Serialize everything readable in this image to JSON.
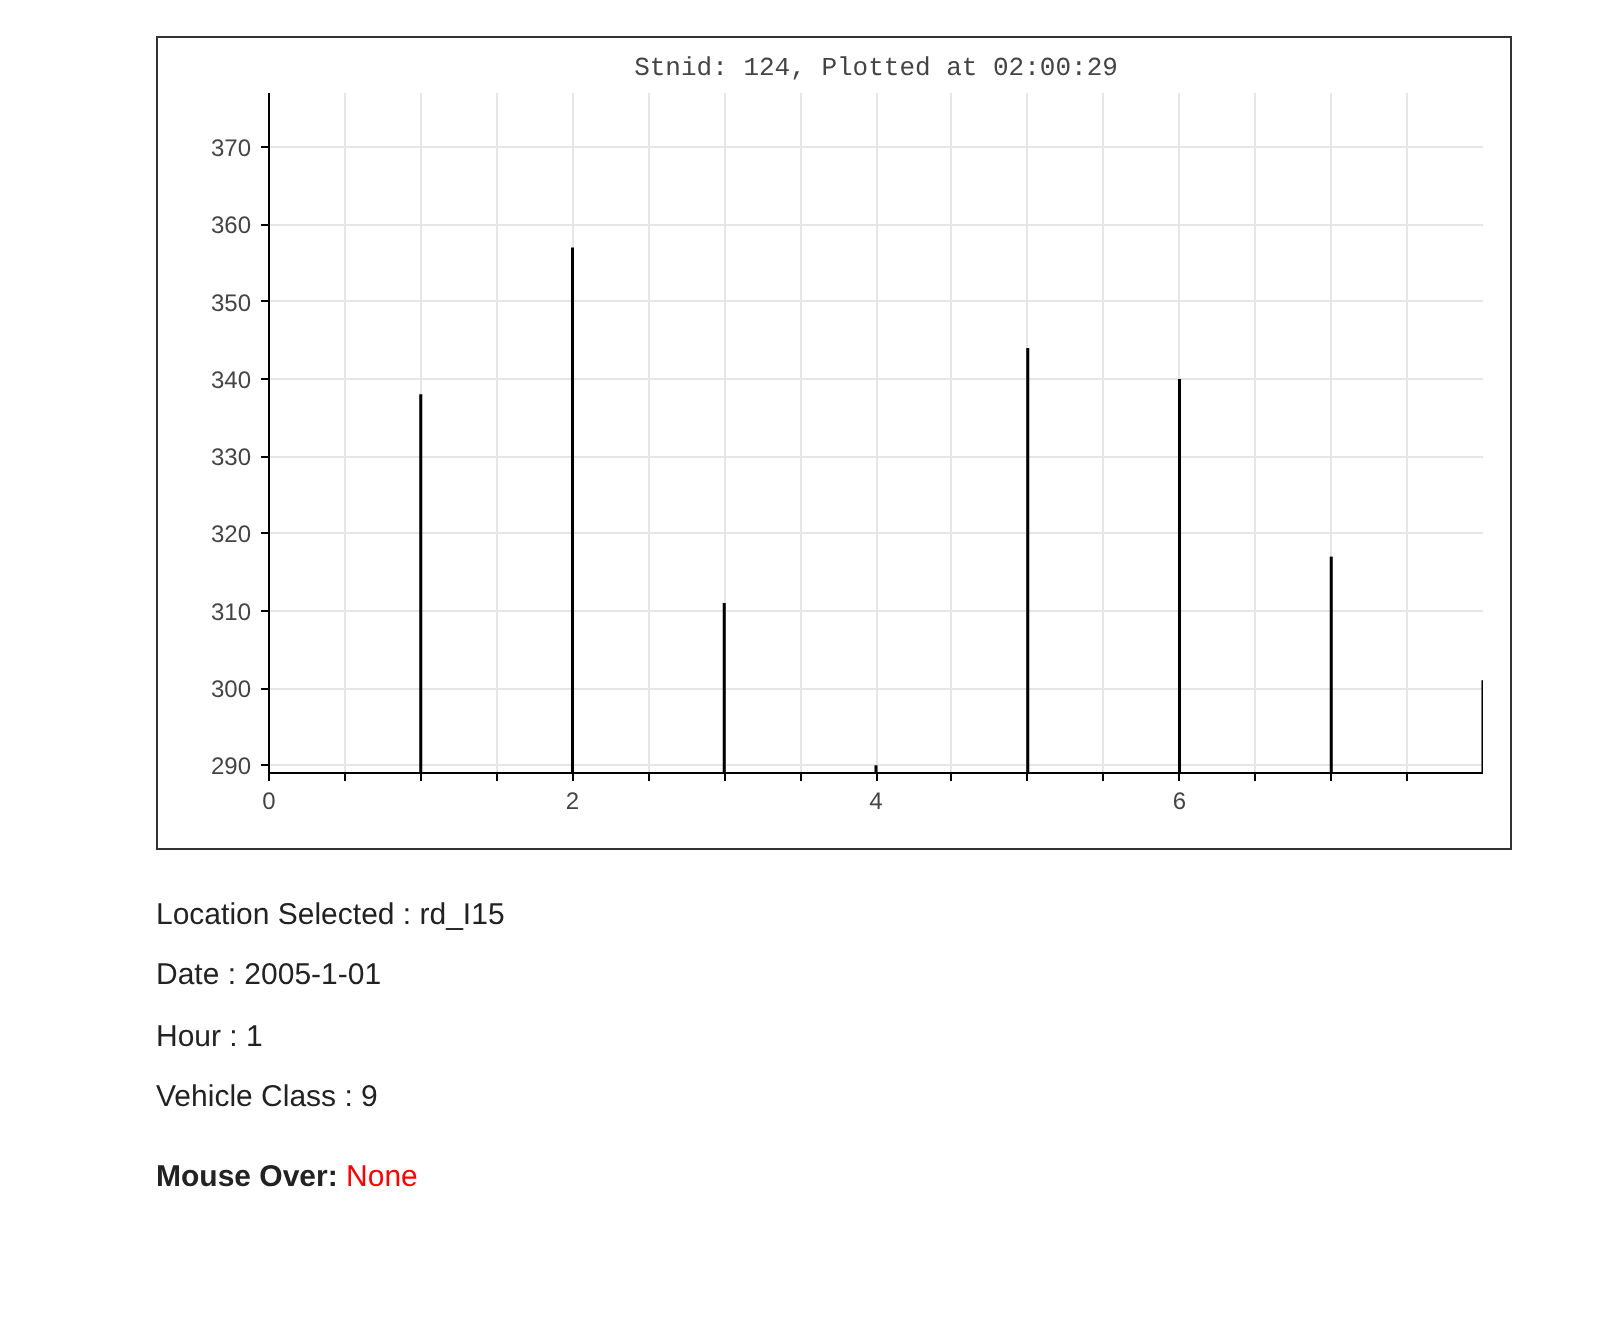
{
  "chart_data": {
    "type": "bar",
    "title": "Stnid: 124, Plotted at 02:00:29",
    "x": [
      1,
      2,
      3,
      4,
      5,
      6,
      7,
      8
    ],
    "series": [
      {
        "color": "#000000",
        "values": [
          338,
          357,
          311,
          290,
          344,
          340,
          317,
          301
        ]
      }
    ],
    "marker": "none",
    "grid": true,
    "xlim": [
      0,
      8
    ],
    "xticks": [
      0,
      {
        "value": 0.5,
        "label": null
      },
      {
        "value": 1,
        "label": null
      },
      {
        "value": 1.5,
        "label": null
      },
      2,
      {
        "value": 2.5,
        "label": null
      },
      {
        "value": 3,
        "label": null
      },
      {
        "value": 3.5,
        "label": null
      },
      4,
      {
        "value": 4.5,
        "label": null
      },
      {
        "value": 5,
        "label": null
      },
      {
        "value": 5.5,
        "label": null
      },
      6,
      {
        "value": 6.5,
        "label": null
      },
      {
        "value": 7,
        "label": null
      },
      {
        "value": 7.5,
        "label": null
      }
    ],
    "ylim": [
      289,
      377
    ],
    "yticks": [
      290,
      300,
      310,
      320,
      330,
      340,
      350,
      360,
      370
    ],
    "annotations": [
      "Location Selected :  rd_I15",
      "Date : 2005-1-01",
      "Hour : 1",
      "Vehicle Class : 9",
      "Mouse Over: None"
    ]
  }
}
